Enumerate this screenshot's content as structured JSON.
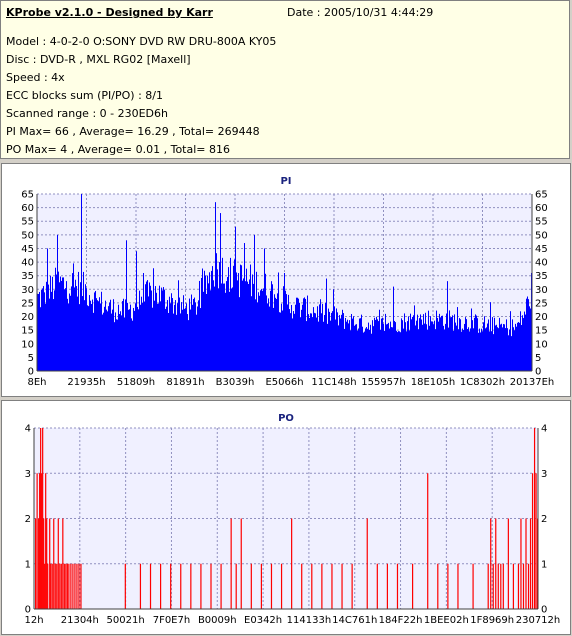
{
  "app_title": "KProbe v2.1.0 - Designed by Karr",
  "date": "Date : 2005/10/31 4:44:29",
  "info_lines": [
    "Model : 4-0-2-0 O:SONY    DVD RW DRU-800A  KY05",
    "Disc : DVD-R , MXL RG02 [Maxell]",
    "Speed : 4x",
    "ECC blocks sum (PI/PO) : 8/1",
    "Scanned range : 0 - 230ED6h",
    "PI Max= 66 , Average= 16.29 , Total= 269448",
    "PO Max= 4 , Average= 0.01 , Total= 816"
  ],
  "colors": {
    "pi": "#0000ff",
    "po": "#ff0000",
    "plot_bg": "#f0f0ff",
    "grid": "#9090c0"
  },
  "chart_data": [
    {
      "type": "bar",
      "title": "PI",
      "ylim": [
        0,
        65
      ],
      "y_ticks": [
        0,
        5,
        10,
        15,
        20,
        25,
        30,
        35,
        40,
        45,
        50,
        55,
        60,
        65
      ],
      "x_tick_labels": [
        "8Eh",
        "21935h",
        "51809h",
        "81891h",
        "B3039h",
        "E5066h",
        "11C148h",
        "155957h",
        "18E105h",
        "1C8302h",
        "20137Eh"
      ],
      "profile": [
        [
          0,
          28
        ],
        [
          0.02,
          30
        ],
        [
          0.04,
          34
        ],
        [
          0.06,
          33
        ],
        [
          0.08,
          33
        ],
        [
          0.1,
          31
        ],
        [
          0.12,
          27
        ],
        [
          0.15,
          24
        ],
        [
          0.18,
          23
        ],
        [
          0.2,
          25
        ],
        [
          0.22,
          29
        ],
        [
          0.24,
          30
        ],
        [
          0.26,
          28
        ],
        [
          0.28,
          26
        ],
        [
          0.3,
          24
        ],
        [
          0.32,
          25
        ],
        [
          0.34,
          33
        ],
        [
          0.36,
          40
        ],
        [
          0.38,
          38
        ],
        [
          0.4,
          36
        ],
        [
          0.42,
          35
        ],
        [
          0.44,
          34
        ],
        [
          0.46,
          32
        ],
        [
          0.48,
          30
        ],
        [
          0.5,
          27
        ],
        [
          0.52,
          25
        ],
        [
          0.55,
          24
        ],
        [
          0.58,
          22
        ],
        [
          0.62,
          20
        ],
        [
          0.66,
          18
        ],
        [
          0.7,
          18
        ],
        [
          0.74,
          19
        ],
        [
          0.78,
          20
        ],
        [
          0.82,
          20
        ],
        [
          0.86,
          19
        ],
        [
          0.9,
          18
        ],
        [
          0.94,
          17
        ],
        [
          0.97,
          17
        ],
        [
          0.985,
          22
        ],
        [
          1,
          30
        ]
      ],
      "peaks": [
        [
          0.02,
          45
        ],
        [
          0.04,
          50
        ],
        [
          0.09,
          66
        ],
        [
          0.18,
          48
        ],
        [
          0.2,
          44
        ],
        [
          0.36,
          62
        ],
        [
          0.37,
          58
        ],
        [
          0.4,
          53
        ],
        [
          0.42,
          47
        ],
        [
          0.44,
          50
        ],
        [
          0.46,
          45
        ],
        [
          0.5,
          36
        ],
        [
          0.6,
          30
        ],
        [
          0.72,
          31
        ],
        [
          0.83,
          33
        ],
        [
          1,
          36
        ]
      ]
    },
    {
      "type": "bar",
      "title": "PO",
      "ylim": [
        0,
        4
      ],
      "y_ticks": [
        0,
        1,
        2,
        3,
        4
      ],
      "x_tick_labels": [
        "12h",
        "21304h",
        "50021h",
        "7F0E7h",
        "B0009h",
        "E0342h",
        "114133h",
        "14C761h",
        "184F22h",
        "1BEE02h",
        "1F8969h",
        "230712h"
      ],
      "points": [
        [
          0.002,
          2
        ],
        [
          0.005,
          3
        ],
        [
          0.008,
          2
        ],
        [
          0.01,
          3
        ],
        [
          0.012,
          4
        ],
        [
          0.014,
          3
        ],
        [
          0.016,
          4
        ],
        [
          0.018,
          2
        ],
        [
          0.02,
          1
        ],
        [
          0.022,
          3
        ],
        [
          0.024,
          2
        ],
        [
          0.026,
          1
        ],
        [
          0.03,
          2
        ],
        [
          0.032,
          1
        ],
        [
          0.035,
          1
        ],
        [
          0.038,
          2
        ],
        [
          0.041,
          1
        ],
        [
          0.044,
          1
        ],
        [
          0.047,
          2
        ],
        [
          0.05,
          1
        ],
        [
          0.053,
          1
        ],
        [
          0.056,
          2
        ],
        [
          0.059,
          1
        ],
        [
          0.062,
          1
        ],
        [
          0.065,
          1
        ],
        [
          0.068,
          1
        ],
        [
          0.072,
          1
        ],
        [
          0.076,
          1
        ],
        [
          0.08,
          1
        ],
        [
          0.084,
          1
        ],
        [
          0.088,
          1
        ],
        [
          0.092,
          1
        ],
        [
          0.18,
          1
        ],
        [
          0.21,
          1
        ],
        [
          0.23,
          1
        ],
        [
          0.25,
          1
        ],
        [
          0.27,
          1
        ],
        [
          0.29,
          1
        ],
        [
          0.31,
          1
        ],
        [
          0.33,
          1
        ],
        [
          0.35,
          1
        ],
        [
          0.37,
          1
        ],
        [
          0.39,
          2
        ],
        [
          0.4,
          1
        ],
        [
          0.41,
          2
        ],
        [
          0.43,
          1
        ],
        [
          0.45,
          1
        ],
        [
          0.47,
          1
        ],
        [
          0.49,
          1
        ],
        [
          0.51,
          2
        ],
        [
          0.53,
          1
        ],
        [
          0.55,
          1
        ],
        [
          0.57,
          1
        ],
        [
          0.59,
          1
        ],
        [
          0.61,
          1
        ],
        [
          0.63,
          1
        ],
        [
          0.66,
          2
        ],
        [
          0.68,
          1
        ],
        [
          0.7,
          1
        ],
        [
          0.72,
          1
        ],
        [
          0.75,
          1
        ],
        [
          0.78,
          3
        ],
        [
          0.8,
          1
        ],
        [
          0.82,
          1
        ],
        [
          0.84,
          1
        ],
        [
          0.87,
          1
        ],
        [
          0.9,
          1
        ],
        [
          0.905,
          2
        ],
        [
          0.91,
          1
        ],
        [
          0.915,
          2
        ],
        [
          0.92,
          1
        ],
        [
          0.925,
          1
        ],
        [
          0.93,
          1
        ],
        [
          0.94,
          2
        ],
        [
          0.95,
          1
        ],
        [
          0.96,
          1
        ],
        [
          0.965,
          2
        ],
        [
          0.97,
          1
        ],
        [
          0.975,
          2
        ],
        [
          0.98,
          1
        ],
        [
          0.984,
          2
        ],
        [
          0.988,
          3
        ],
        [
          0.992,
          4
        ],
        [
          0.995,
          3
        ],
        [
          0.998,
          2
        ]
      ]
    }
  ]
}
